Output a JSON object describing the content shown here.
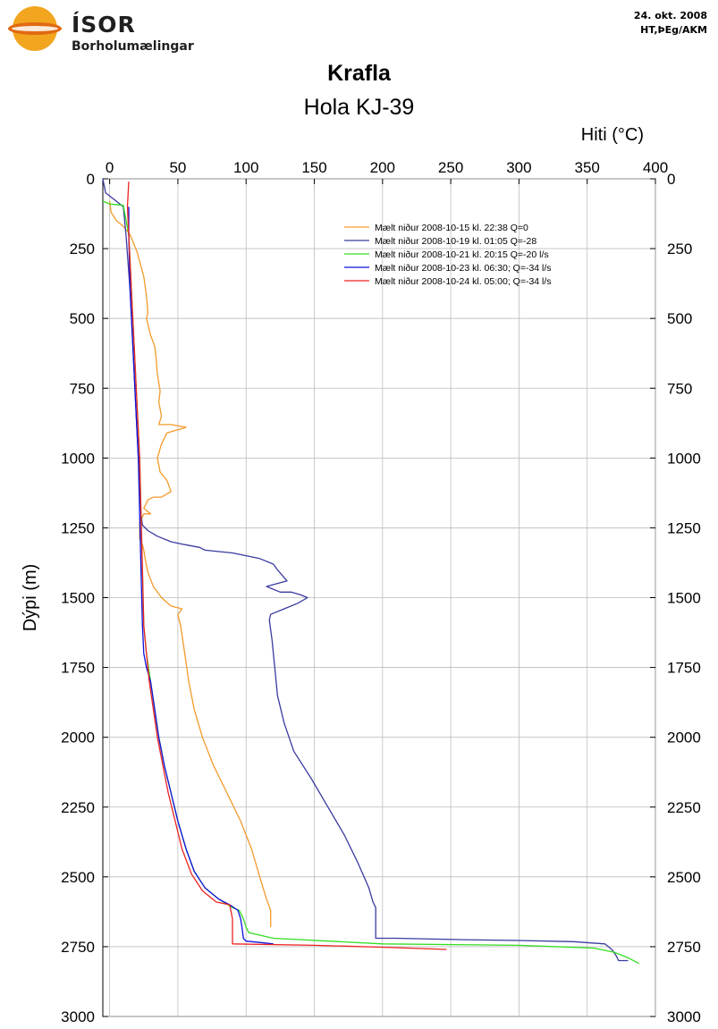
{
  "header": {
    "brand": "ÍSOR",
    "brand_sub": "Borholumælingar",
    "date": "24. okt. 2008",
    "authors": "HT,ÞEg/AKM",
    "logo_colors": {
      "sun": "#f2a51f",
      "band": "#e06a12"
    }
  },
  "chart_data": {
    "type": "line",
    "title": "Krafla",
    "subtitle": "Hola KJ-39",
    "xlabel": "Hiti (°C)",
    "ylabel": "Dýpi (m)",
    "x_axis_position": "top",
    "y_axis": "inverted",
    "xlim": [
      -5,
      400
    ],
    "ylim": [
      3000,
      0
    ],
    "xticks": [
      0,
      50,
      100,
      150,
      200,
      250,
      300,
      350,
      400
    ],
    "yticks": [
      0,
      250,
      500,
      750,
      1000,
      1250,
      1500,
      1750,
      2000,
      2250,
      2500,
      2750,
      3000
    ],
    "grid": true,
    "legend_position": "top-right",
    "series": [
      {
        "name": "Mælt niður 2008-10-15 kl. 22:38 Q=0",
        "color": "#f39a2b",
        "x": [
          0,
          1,
          5,
          10,
          15,
          20,
          25,
          27,
          28,
          27,
          30,
          33,
          34,
          35,
          37,
          36,
          38,
          36,
          45,
          56,
          42,
          38,
          35,
          37,
          42,
          45,
          38,
          32,
          28,
          25,
          30,
          25,
          22,
          22,
          24,
          25,
          26,
          28,
          32,
          38,
          45,
          53,
          50,
          52,
          55,
          58,
          62,
          68,
          76,
          86,
          96,
          104,
          110,
          115,
          118,
          118
        ],
        "y": [
          80,
          120,
          150,
          170,
          200,
          260,
          350,
          420,
          480,
          500,
          560,
          600,
          640,
          700,
          760,
          800,
          850,
          880,
          880,
          890,
          910,
          950,
          1000,
          1050,
          1080,
          1120,
          1140,
          1140,
          1150,
          1180,
          1200,
          1200,
          1230,
          1290,
          1310,
          1330,
          1360,
          1410,
          1460,
          1500,
          1530,
          1540,
          1560,
          1600,
          1700,
          1800,
          1900,
          2000,
          2100,
          2200,
          2300,
          2400,
          2500,
          2580,
          2620,
          2680
        ]
      },
      {
        "name": "Mælt niður 2008-10-19 kl. 01:05 Q=-28",
        "color": "#3a3aa0",
        "x": [
          -5,
          -3,
          10,
          12,
          15,
          17,
          19,
          21,
          22,
          23,
          24,
          28,
          35,
          45,
          55,
          66,
          70,
          90,
          110,
          120,
          123,
          130,
          115,
          125,
          133,
          140,
          145,
          138,
          128,
          118,
          117,
          119,
          121,
          123,
          128,
          135,
          148,
          160,
          172,
          182,
          190,
          193,
          195,
          195,
          210,
          260,
          300,
          340,
          363,
          368,
          371,
          372,
          373,
          380
        ],
        "y": [
          0,
          50,
          100,
          200,
          400,
          600,
          800,
          1000,
          1100,
          1200,
          1240,
          1260,
          1280,
          1300,
          1310,
          1320,
          1330,
          1340,
          1360,
          1380,
          1400,
          1440,
          1460,
          1480,
          1480,
          1490,
          1500,
          1520,
          1540,
          1560,
          1580,
          1650,
          1750,
          1850,
          1950,
          2050,
          2150,
          2250,
          2350,
          2450,
          2540,
          2590,
          2610,
          2720,
          2720,
          2725,
          2728,
          2732,
          2740,
          2760,
          2780,
          2790,
          2800,
          2800
        ]
      },
      {
        "name": "Mælt niður 2008-10-21 kl. 20:15 Q=-20 l/s",
        "color": "#33dd22",
        "x": [
          -5,
          0,
          10,
          14,
          16,
          18,
          20,
          22,
          23,
          24,
          25,
          27,
          30,
          33,
          36,
          40,
          45,
          50,
          56,
          62,
          70,
          80,
          90,
          95,
          98,
          100,
          102,
          120,
          200,
          300,
          355,
          370,
          380,
          388
        ],
        "y": [
          80,
          90,
          95,
          200,
          400,
          600,
          800,
          1000,
          1200,
          1400,
          1600,
          1700,
          1800,
          1900,
          2000,
          2100,
          2200,
          2300,
          2400,
          2480,
          2540,
          2580,
          2610,
          2620,
          2650,
          2680,
          2700,
          2720,
          2740,
          2745,
          2755,
          2770,
          2790,
          2810
        ]
      },
      {
        "name": "Mælt niður 2008-10-23 kl. 06:30; Q=-34 l/s",
        "color": "#1010dd",
        "x": [
          14,
          14,
          15,
          17,
          19,
          21,
          22,
          23,
          24,
          25,
          27,
          30,
          33,
          36,
          40,
          45,
          50,
          56,
          62,
          70,
          80,
          88,
          94,
          96,
          97,
          98,
          100,
          110,
          120
        ],
        "y": [
          100,
          200,
          400,
          600,
          800,
          1000,
          1200,
          1400,
          1600,
          1700,
          1750,
          1800,
          1900,
          2000,
          2100,
          2200,
          2300,
          2400,
          2480,
          2540,
          2580,
          2600,
          2620,
          2650,
          2680,
          2720,
          2730,
          2735,
          2740
        ]
      },
      {
        "name": "Mælt niður 2008-10-24 kl. 05:00; Q=-34 l/s",
        "color": "#ee2222",
        "x": [
          14,
          13,
          14,
          16,
          18,
          20,
          22,
          23,
          24,
          25,
          27,
          29,
          32,
          35,
          39,
          43,
          48,
          53,
          60,
          68,
          78,
          88,
          90,
          90,
          150,
          200,
          247
        ],
        "y": [
          10,
          100,
          200,
          400,
          600,
          800,
          1000,
          1200,
          1400,
          1600,
          1700,
          1800,
          1900,
          2000,
          2100,
          2200,
          2300,
          2400,
          2490,
          2550,
          2590,
          2600,
          2650,
          2740,
          2745,
          2752,
          2760
        ]
      }
    ]
  }
}
